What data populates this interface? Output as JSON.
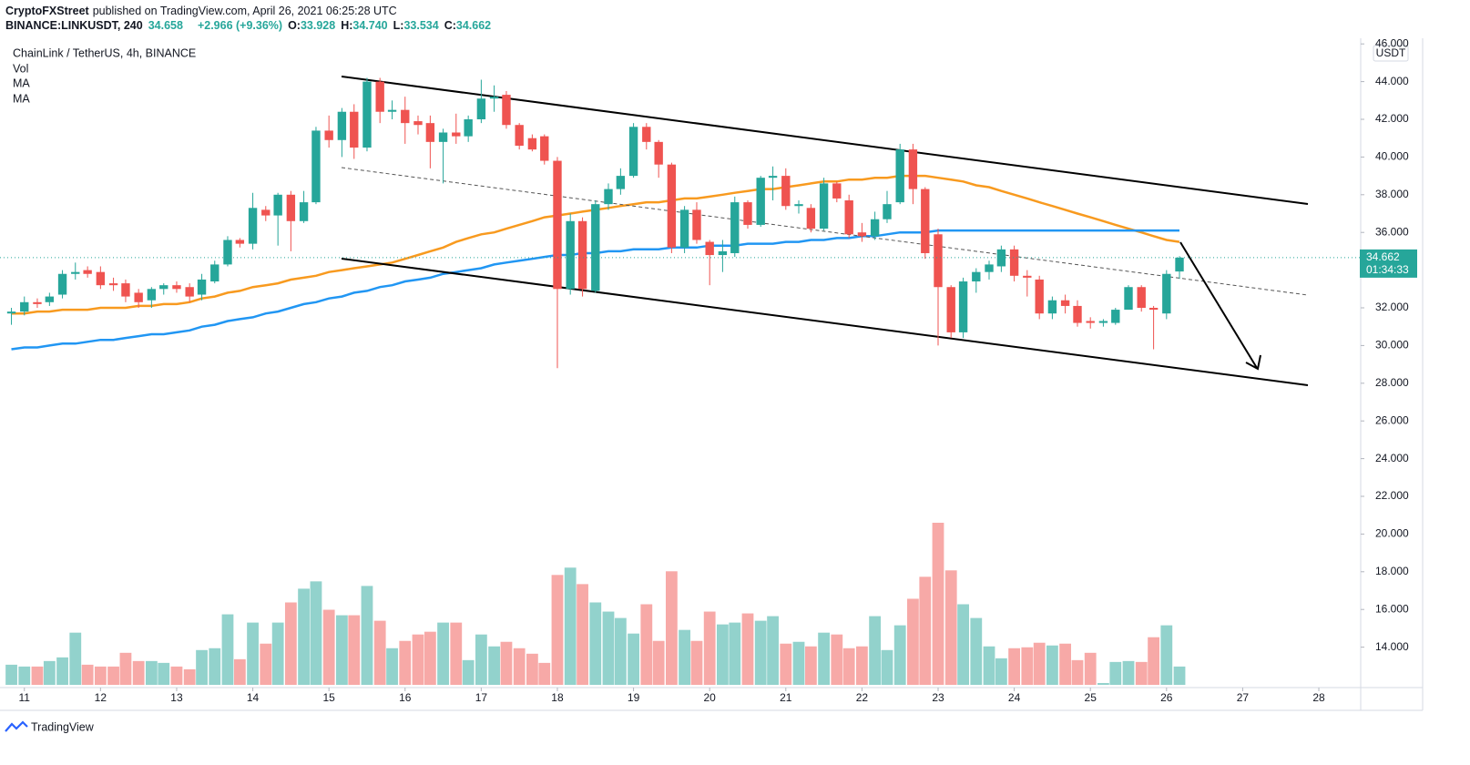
{
  "header": {
    "author": "CryptoFXStreet",
    "published": "published on TradingView.com, April 26, 2021 06:25:28 UTC",
    "symbol": "BINANCE:LINKUSDT, 240",
    "last": "34.658",
    "change": "+2.966 (+9.36%)",
    "o_label": "O:",
    "o": "33.928",
    "h_label": "H:",
    "h": "34.740",
    "l_label": "L:",
    "l": "33.534",
    "c_label": "C:",
    "c": "34.662"
  },
  "footer": {
    "brand": "TradingView"
  },
  "chart_data": {
    "type": "candlestick",
    "legend": {
      "title": "ChainLink / TetherUS, 4h, BINANCE"
    },
    "currency": "USDT",
    "countdown": "01:34:33",
    "up_color": "#26a69a",
    "down_color": "#ef5350",
    "volume_up_color": "#92d2cc",
    "volume_down_color": "#f7a9a7",
    "xlim": [
      10.68,
      28.55
    ],
    "xticks": [
      11,
      12,
      13,
      14,
      15,
      16,
      17,
      18,
      19,
      20,
      21,
      22,
      23,
      24,
      25,
      26,
      27,
      28
    ],
    "ylim": [
      12,
      46.3
    ],
    "yticks": [
      {
        "value": 14,
        "label": "14.000"
      },
      {
        "value": 16,
        "label": "16.000"
      },
      {
        "value": 18,
        "label": "18.000"
      },
      {
        "value": 20,
        "label": "20.000"
      },
      {
        "value": 22,
        "label": "22.000"
      },
      {
        "value": 24,
        "label": "24.000"
      },
      {
        "value": 26,
        "label": "26.000"
      },
      {
        "value": 28,
        "label": "28.000"
      },
      {
        "value": 30,
        "label": "30.000"
      },
      {
        "value": 32,
        "label": "32.000"
      },
      {
        "value": 34,
        "label": "34.000"
      },
      {
        "value": 36,
        "label": "36.000"
      },
      {
        "value": 38,
        "label": "38.000"
      },
      {
        "value": 40,
        "label": "40.000"
      },
      {
        "value": 42,
        "label": "42.000"
      },
      {
        "value": 44,
        "label": "44.000"
      },
      {
        "value": 46,
        "label": "46.000"
      }
    ],
    "grid": false,
    "x": [
      10.83,
      11,
      11.17,
      11.33,
      11.5,
      11.67,
      11.83,
      12,
      12.17,
      12.33,
      12.5,
      12.67,
      12.83,
      13,
      13.17,
      13.33,
      13.5,
      13.67,
      13.83,
      14,
      14.17,
      14.33,
      14.5,
      14.67,
      14.83,
      15,
      15.17,
      15.33,
      15.5,
      15.67,
      15.83,
      16,
      16.17,
      16.33,
      16.5,
      16.67,
      16.83,
      17,
      17.17,
      17.33,
      17.5,
      17.67,
      17.83,
      18,
      18.17,
      18.33,
      18.5,
      18.67,
      18.83,
      19,
      19.17,
      19.33,
      19.5,
      19.67,
      19.83,
      20,
      20.17,
      20.33,
      20.5,
      20.67,
      20.83,
      21,
      21.17,
      21.33,
      21.5,
      21.67,
      21.83,
      22,
      22.17,
      22.33,
      22.5,
      22.67,
      22.83,
      23,
      23.17,
      23.33,
      23.5,
      23.67,
      23.83,
      24,
      24.17,
      24.33,
      24.5,
      24.67,
      24.83,
      25,
      25.17,
      25.33,
      25.5,
      25.67,
      25.83,
      26,
      26.17
    ],
    "open": [
      31.7,
      31.8,
      32.3,
      32.3,
      32.7,
      33.8,
      34.0,
      33.9,
      33.3,
      33.3,
      32.8,
      32.4,
      33.0,
      33.2,
      33.1,
      32.7,
      33.4,
      34.3,
      35.6,
      35.4,
      37.2,
      36.9,
      38.0,
      36.6,
      37.6,
      41.4,
      40.9,
      42.4,
      40.5,
      44.0,
      42.4,
      42.5,
      41.9,
      41.8,
      40.8,
      41.3,
      41.1,
      42.0,
      43.1,
      43.3,
      41.7,
      41.0,
      41.1,
      39.8,
      33.0,
      36.6,
      32.9,
      37.5,
      38.3,
      39.0,
      41.6,
      40.8,
      39.6,
      35.2,
      37.2,
      35.5,
      34.8,
      34.9,
      37.6,
      36.4,
      38.9,
      39.0,
      37.4,
      37.3,
      36.2,
      38.6,
      37.7,
      36.0,
      35.8,
      36.7,
      37.6,
      40.4,
      38.3,
      35.9,
      33.1,
      30.7,
      33.4,
      33.9,
      34.2,
      35.1,
      33.7,
      33.5,
      31.7,
      32.4,
      32.1,
      31.3,
      31.2,
      31.2,
      31.9,
      33.1,
      32.0,
      31.7,
      33.928
    ],
    "high": [
      32.0,
      32.6,
      32.5,
      32.8,
      34.0,
      34.4,
      34.2,
      34.2,
      33.6,
      33.5,
      33.0,
      33.1,
      33.3,
      33.4,
      33.3,
      33.8,
      34.5,
      35.8,
      35.7,
      38.1,
      37.4,
      38.1,
      38.2,
      38.2,
      41.6,
      42.2,
      42.6,
      42.8,
      44.2,
      44.2,
      43.0,
      43.2,
      42.2,
      42.2,
      41.5,
      42.3,
      42.2,
      44.1,
      43.8,
      43.5,
      41.8,
      41.2,
      41.2,
      40.0,
      37.0,
      36.8,
      37.7,
      38.6,
      39.4,
      41.8,
      41.8,
      40.9,
      39.7,
      37.4,
      37.6,
      35.6,
      35.6,
      37.9,
      37.7,
      39.0,
      39.5,
      39.4,
      37.7,
      37.5,
      38.9,
      38.7,
      38.0,
      36.5,
      37.1,
      38.2,
      40.7,
      40.7,
      38.4,
      36.2,
      33.2,
      33.6,
      34.1,
      34.5,
      35.3,
      35.3,
      34.0,
      33.7,
      32.6,
      32.7,
      32.4,
      31.5,
      31.4,
      32.0,
      33.2,
      33.2,
      32.1,
      34.0,
      34.74
    ],
    "low": [
      31.1,
      31.6,
      32.0,
      32.1,
      32.5,
      33.5,
      33.6,
      33.0,
      32.9,
      32.3,
      32.0,
      32.0,
      32.7,
      32.8,
      32.3,
      32.4,
      33.3,
      34.2,
      35.2,
      35.1,
      36.6,
      35.3,
      35.0,
      36.5,
      37.5,
      40.5,
      40.0,
      39.9,
      40.3,
      41.8,
      42.0,
      40.7,
      41.2,
      39.4,
      38.6,
      40.7,
      40.8,
      41.8,
      42.4,
      41.5,
      40.4,
      40.3,
      39.6,
      28.8,
      32.7,
      32.6,
      32.8,
      37.2,
      38.0,
      38.9,
      40.4,
      38.9,
      34.9,
      34.9,
      35.4,
      33.2,
      33.9,
      34.7,
      36.2,
      36.3,
      37.7,
      37.2,
      37.0,
      36.0,
      36.1,
      37.6,
      35.7,
      35.5,
      35.6,
      36.5,
      37.5,
      37.5,
      34.6,
      30.0,
      30.4,
      30.4,
      32.8,
      33.5,
      33.9,
      33.4,
      32.6,
      31.4,
      31.4,
      31.7,
      31.0,
      30.9,
      31.0,
      31.1,
      31.9,
      31.8,
      29.8,
      31.4,
      33.534
    ],
    "close": [
      31.8,
      32.3,
      32.2,
      32.6,
      33.8,
      33.9,
      33.8,
      33.2,
      33.2,
      32.6,
      32.3,
      33.0,
      33.2,
      33.0,
      32.6,
      33.5,
      34.3,
      35.6,
      35.4,
      37.3,
      36.9,
      38.0,
      36.6,
      37.6,
      41.4,
      40.9,
      42.4,
      40.5,
      44.0,
      42.4,
      42.5,
      41.8,
      41.7,
      40.8,
      41.3,
      41.1,
      42.0,
      43.1,
      43.2,
      41.7,
      40.6,
      40.4,
      39.8,
      33.0,
      36.6,
      33.0,
      37.5,
      38.3,
      39.0,
      41.6,
      40.8,
      39.6,
      35.2,
      37.2,
      35.6,
      34.8,
      35.0,
      37.6,
      36.4,
      38.9,
      39.0,
      37.4,
      37.5,
      36.2,
      38.6,
      37.8,
      35.9,
      35.8,
      36.7,
      37.5,
      40.4,
      38.3,
      34.9,
      33.1,
      30.7,
      33.4,
      33.9,
      34.3,
      35.1,
      33.7,
      33.6,
      31.7,
      32.4,
      32.1,
      31.2,
      31.2,
      31.3,
      31.9,
      33.1,
      32.0,
      31.9,
      33.8,
      34.662
    ],
    "volume": {
      "name": "Vol",
      "values": [
        22,
        20,
        20,
        26,
        30,
        57,
        22,
        20,
        20,
        35,
        26,
        26,
        24,
        20,
        17,
        38,
        40,
        77,
        28,
        68,
        45,
        68,
        90,
        105,
        113,
        82,
        76,
        76,
        108,
        70,
        40,
        48,
        55,
        58,
        68,
        68,
        27,
        55,
        42,
        47,
        40,
        34,
        24,
        120,
        128,
        110,
        90,
        80,
        73,
        56,
        88,
        48,
        124,
        60,
        48,
        80,
        66,
        68,
        78,
        70,
        75,
        45,
        47,
        42,
        57,
        55,
        40,
        42,
        75,
        38,
        65,
        94,
        118,
        177,
        125,
        88,
        73,
        42,
        29,
        40,
        41,
        46,
        43,
        45,
        27,
        35,
        2,
        25,
        26,
        25,
        52,
        65,
        20
      ]
    },
    "series": [
      {
        "name": "MA",
        "color": "#f89a1f",
        "values": [
          31.7,
          31.7,
          31.8,
          31.8,
          31.9,
          31.9,
          31.9,
          32.0,
          32.0,
          32.0,
          32.1,
          32.1,
          32.2,
          32.2,
          32.3,
          32.5,
          32.6,
          32.8,
          32.9,
          33.1,
          33.2,
          33.3,
          33.5,
          33.6,
          33.7,
          33.9,
          34.0,
          34.1,
          34.2,
          34.3,
          34.4,
          34.6,
          34.8,
          35.0,
          35.2,
          35.5,
          35.7,
          35.9,
          36.0,
          36.2,
          36.4,
          36.6,
          36.8,
          36.9,
          37.0,
          37.1,
          37.2,
          37.3,
          37.4,
          37.5,
          37.6,
          37.6,
          37.7,
          37.8,
          37.8,
          37.9,
          38.0,
          38.1,
          38.2,
          38.3,
          38.3,
          38.4,
          38.5,
          38.6,
          38.7,
          38.7,
          38.8,
          38.8,
          38.9,
          38.9,
          39.0,
          39.0,
          39.0,
          38.9,
          38.8,
          38.7,
          38.5,
          38.4,
          38.2,
          38.0,
          37.8,
          37.6,
          37.4,
          37.2,
          37.0,
          36.8,
          36.6,
          36.4,
          36.2,
          36.0,
          35.8,
          35.6,
          35.5
        ]
      },
      {
        "name": "MA",
        "color": "#2196f3",
        "values": [
          29.8,
          29.9,
          29.9,
          30.0,
          30.1,
          30.1,
          30.2,
          30.3,
          30.3,
          30.4,
          30.5,
          30.6,
          30.6,
          30.7,
          30.8,
          31.0,
          31.1,
          31.3,
          31.4,
          31.5,
          31.7,
          31.8,
          32.0,
          32.2,
          32.3,
          32.5,
          32.6,
          32.8,
          32.9,
          33.1,
          33.2,
          33.4,
          33.5,
          33.6,
          33.8,
          33.9,
          34.0,
          34.1,
          34.3,
          34.4,
          34.5,
          34.6,
          34.7,
          34.8,
          34.8,
          34.9,
          34.9,
          35.0,
          35.0,
          35.1,
          35.1,
          35.1,
          35.2,
          35.2,
          35.2,
          35.3,
          35.3,
          35.3,
          35.4,
          35.4,
          35.4,
          35.5,
          35.5,
          35.6,
          35.6,
          35.7,
          35.7,
          35.8,
          35.8,
          35.9,
          36.0,
          36.0,
          36.0,
          36.1,
          36.1,
          36.1,
          36.1,
          36.1,
          36.1,
          36.1,
          36.1,
          36.1,
          36.1,
          36.1,
          36.1,
          36.1,
          36.1,
          36.1,
          36.1,
          36.1,
          36.1,
          36.1,
          36.1
        ]
      }
    ]
  }
}
